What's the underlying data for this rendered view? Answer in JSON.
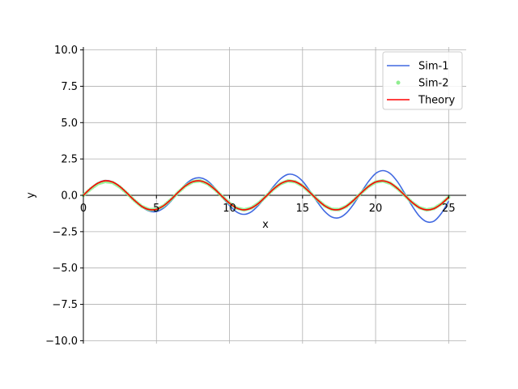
{
  "chart_data": {
    "type": "line",
    "title": "",
    "xlabel": "x",
    "ylabel": "y",
    "xlim": [
      0,
      26.2
    ],
    "ylim": [
      -10.2,
      10.2
    ],
    "xticks": [
      0,
      5,
      10,
      15,
      20,
      25
    ],
    "xtick_labels": [
      "0",
      "5",
      "10",
      "15",
      "20",
      "25"
    ],
    "yticks": [
      -10,
      -7.5,
      -5,
      -2.5,
      0,
      2.5,
      5,
      7.5,
      10
    ],
    "ytick_labels": [
      "−10.0",
      "−7.5",
      "−5.0",
      "−2.5",
      "0.0",
      "2.5",
      "5.0",
      "7.5",
      "10.0"
    ],
    "grid": true,
    "legend_position": "top-right",
    "series": [
      {
        "name": "Sim-1",
        "style": "line",
        "color": "#4169e1",
        "x": [
          0,
          0.5,
          1,
          1.5,
          2,
          2.5,
          3,
          3.5,
          4,
          4.5,
          5,
          5.5,
          6,
          6.5,
          7,
          7.5,
          8,
          8.5,
          9,
          9.5,
          10,
          10.5,
          11,
          11.5,
          12,
          12.5,
          13,
          13.5,
          14,
          14.5,
          15,
          15.5,
          16,
          16.5,
          17,
          17.5,
          18,
          18.5,
          19,
          19.5,
          20,
          20.5,
          21,
          21.5,
          22,
          22.5,
          23,
          23.5,
          24,
          24.5,
          25
        ],
        "y": [
          0,
          0.49,
          0.86,
          1.02,
          0.93,
          0.61,
          0.15,
          -0.36,
          -0.8,
          -1.08,
          -1.12,
          -0.87,
          -0.4,
          0.2,
          0.76,
          1.12,
          1.2,
          0.99,
          0.5,
          -0.13,
          -0.7,
          -1.15,
          -1.31,
          -1.13,
          -0.67,
          -0.06,
          0.59,
          1.14,
          1.44,
          1.37,
          0.97,
          0.3,
          -0.44,
          -1.09,
          -1.49,
          -1.54,
          -1.22,
          -0.6,
          0.18,
          0.93,
          1.5,
          1.7,
          1.5,
          0.93,
          0.12,
          -0.73,
          -1.44,
          -1.82,
          -1.77,
          -1.24,
          -0.4
        ]
      },
      {
        "name": "Sim-2",
        "style": "scatter",
        "color": "#90ee90",
        "x": [
          0,
          0.5,
          1,
          1.5,
          2,
          2.5,
          3,
          3.5,
          4,
          4.5,
          5,
          5.5,
          6,
          6.5,
          7,
          7.5,
          8,
          8.5,
          9,
          9.5,
          10,
          10.5,
          11,
          11.5,
          12,
          12.5,
          13,
          13.5,
          14,
          14.5,
          15,
          15.5,
          16,
          16.5,
          17,
          17.5,
          18,
          18.5,
          19,
          19.5,
          20,
          20.5,
          21,
          21.5,
          22,
          22.5,
          23,
          23.5,
          24,
          24.5,
          25
        ],
        "y": [
          0,
          0.44,
          0.8,
          0.95,
          0.88,
          0.57,
          0.12,
          -0.36,
          -0.77,
          -0.98,
          -0.97,
          -0.72,
          -0.29,
          0.21,
          0.66,
          0.94,
          0.99,
          0.8,
          0.41,
          -0.08,
          -0.54,
          -0.88,
          -1.0,
          -0.87,
          -0.53,
          -0.07,
          0.42,
          0.8,
          0.99,
          0.93,
          0.65,
          0.2,
          -0.29,
          -0.71,
          -0.96,
          -0.98,
          -0.76,
          -0.35,
          0.15,
          0.6,
          0.91,
          0.99,
          0.83,
          0.47,
          -0.01,
          -0.49,
          -0.85,
          -1.0,
          -0.9,
          -0.59,
          -0.13
        ]
      },
      {
        "name": "Theory",
        "style": "line",
        "color": "#ff0000",
        "x": [
          0,
          0.5,
          1,
          1.5,
          2,
          2.5,
          3,
          3.5,
          4,
          4.5,
          5,
          5.5,
          6,
          6.5,
          7,
          7.5,
          8,
          8.5,
          9,
          9.5,
          10,
          10.5,
          11,
          11.5,
          12,
          12.5,
          13,
          13.5,
          14,
          14.5,
          15,
          15.5,
          16,
          16.5,
          17,
          17.5,
          18,
          18.5,
          19,
          19.5,
          20,
          20.5,
          21,
          21.5,
          22,
          22.5,
          23,
          23.5,
          24,
          24.5,
          25
        ],
        "y": [
          0,
          0.48,
          0.84,
          1.0,
          0.91,
          0.6,
          0.14,
          -0.35,
          -0.76,
          -0.98,
          -0.96,
          -0.71,
          -0.28,
          0.22,
          0.66,
          0.94,
          0.99,
          0.8,
          0.41,
          -0.08,
          -0.54,
          -0.88,
          -1.0,
          -0.87,
          -0.54,
          -0.07,
          0.42,
          0.8,
          0.99,
          0.93,
          0.65,
          0.2,
          -0.29,
          -0.71,
          -0.96,
          -0.98,
          -0.75,
          -0.34,
          0.15,
          0.6,
          0.91,
          0.99,
          0.84,
          0.47,
          -0.01,
          -0.49,
          -0.85,
          -1.0,
          -0.91,
          -0.59,
          -0.13
        ]
      }
    ]
  }
}
